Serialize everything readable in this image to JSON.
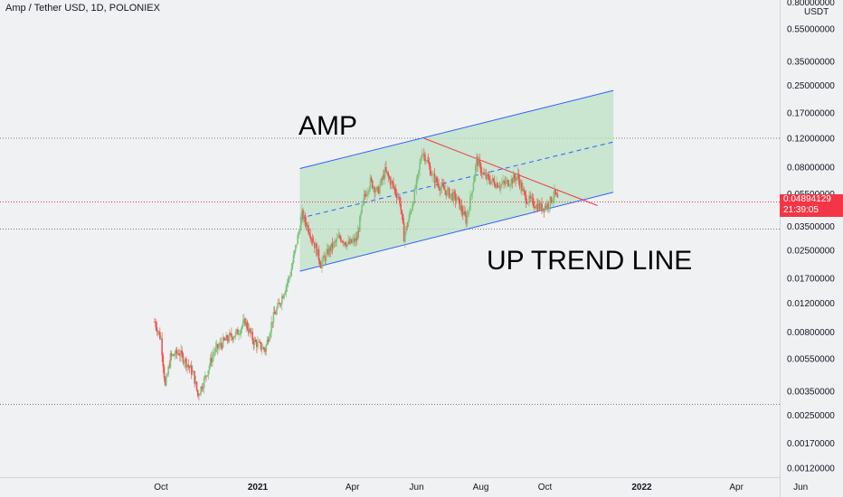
{
  "header": {
    "title": "Amp / Tether USD, 1D, POLONIEX"
  },
  "price_axis": {
    "currency": "USDT",
    "ticks": [
      "0.80000000",
      "0.55000000",
      "0.35000000",
      "0.25000000",
      "0.17000000",
      "0.12000000",
      "0.08000000",
      "0.05500000",
      "0.03500000",
      "0.02500000",
      "0.01700000",
      "0.01200000",
      "0.00800000",
      "0.00550000",
      "0.00350000",
      "0.00250000",
      "0.00170000",
      "0.00120000"
    ]
  },
  "last_price": {
    "price": "0.04894129",
    "countdown": "21:39:05",
    "color": "#f23645"
  },
  "time_axis": {
    "labels": [
      {
        "text": "Oct",
        "bold": false
      },
      {
        "text": "2021",
        "bold": true
      },
      {
        "text": "Apr",
        "bold": false
      },
      {
        "text": "Jun",
        "bold": false
      },
      {
        "text": "Aug",
        "bold": false
      },
      {
        "text": "Oct",
        "bold": false
      },
      {
        "text": "2022",
        "bold": true
      },
      {
        "text": "Apr",
        "bold": false
      },
      {
        "text": "Jun",
        "bold": false
      }
    ]
  },
  "annotations": {
    "title_text": "AMP",
    "trend_text": "UP TREND LINE"
  },
  "colors": {
    "up": "#26a69a",
    "up_light": "#7cc47f",
    "down": "#ef5350",
    "channel_line": "#2962ff",
    "channel_fill": "#b9dfc0",
    "resistance": "#f23645",
    "level": "#787b86"
  },
  "chart_data": {
    "type": "candlestick",
    "title": "",
    "scale": "log",
    "ylim": [
      0.00105,
      0.82
    ],
    "guide_levels": [
      0.119,
      0.0335,
      0.0029
    ],
    "channel": {
      "upper": [
        [
          "2021-02-10",
          0.078
        ],
        [
          "2021-12-05",
          0.232
        ]
      ],
      "middle": [
        [
          "2021-02-10",
          0.039
        ],
        [
          "2021-12-05",
          0.113
        ]
      ],
      "lower": [
        [
          "2021-02-10",
          0.0186
        ],
        [
          "2021-12-05",
          0.056
        ]
      ]
    },
    "resistance_line": [
      [
        "2021-06-08",
        0.119
      ],
      [
        "2021-11-20",
        0.0465
      ]
    ],
    "close_path": [
      [
        "2020-09-25",
        0.0092
      ],
      [
        "2020-10-01",
        0.0072
      ],
      [
        "2020-10-05",
        0.0037
      ],
      [
        "2020-10-10",
        0.0056
      ],
      [
        "2020-10-18",
        0.006
      ],
      [
        "2020-10-25",
        0.0052
      ],
      [
        "2020-11-01",
        0.0044
      ],
      [
        "2020-11-05",
        0.0033
      ],
      [
        "2020-11-12",
        0.0042
      ],
      [
        "2020-11-20",
        0.006
      ],
      [
        "2020-11-28",
        0.0068
      ],
      [
        "2020-12-05",
        0.0074
      ],
      [
        "2020-12-12",
        0.0078
      ],
      [
        "2020-12-20",
        0.0092
      ],
      [
        "2020-12-28",
        0.007
      ],
      [
        "2021-01-08",
        0.0062
      ],
      [
        "2021-01-15",
        0.0095
      ],
      [
        "2021-01-22",
        0.012
      ],
      [
        "2021-02-01",
        0.018
      ],
      [
        "2021-02-08",
        0.03
      ],
      [
        "2021-02-12",
        0.041
      ],
      [
        "2021-02-18",
        0.034
      ],
      [
        "2021-02-25",
        0.026
      ],
      [
        "2021-03-02",
        0.0205
      ],
      [
        "2021-03-10",
        0.025
      ],
      [
        "2021-03-20",
        0.03
      ],
      [
        "2021-03-28",
        0.027
      ],
      [
        "2021-04-05",
        0.029
      ],
      [
        "2021-04-12",
        0.052
      ],
      [
        "2021-04-18",
        0.065
      ],
      [
        "2021-04-25",
        0.056
      ],
      [
        "2021-05-02",
        0.075
      ],
      [
        "2021-05-09",
        0.062
      ],
      [
        "2021-05-16",
        0.05
      ],
      [
        "2021-05-20",
        0.03
      ],
      [
        "2021-05-26",
        0.042
      ],
      [
        "2021-06-02",
        0.068
      ],
      [
        "2021-06-06",
        0.1
      ],
      [
        "2021-06-10",
        0.09
      ],
      [
        "2021-06-16",
        0.07
      ],
      [
        "2021-06-24",
        0.06
      ],
      [
        "2021-07-02",
        0.055
      ],
      [
        "2021-07-10",
        0.05
      ],
      [
        "2021-07-18",
        0.038
      ],
      [
        "2021-07-22",
        0.05
      ],
      [
        "2021-07-28",
        0.088
      ],
      [
        "2021-08-04",
        0.07
      ],
      [
        "2021-08-12",
        0.065
      ],
      [
        "2021-08-20",
        0.062
      ],
      [
        "2021-08-28",
        0.065
      ],
      [
        "2021-09-05",
        0.07
      ],
      [
        "2021-09-12",
        0.052
      ],
      [
        "2021-09-20",
        0.048
      ],
      [
        "2021-09-28",
        0.045
      ],
      [
        "2021-10-05",
        0.048
      ],
      [
        "2021-10-10",
        0.055
      ],
      [
        "2021-10-14",
        0.0489
      ]
    ]
  }
}
